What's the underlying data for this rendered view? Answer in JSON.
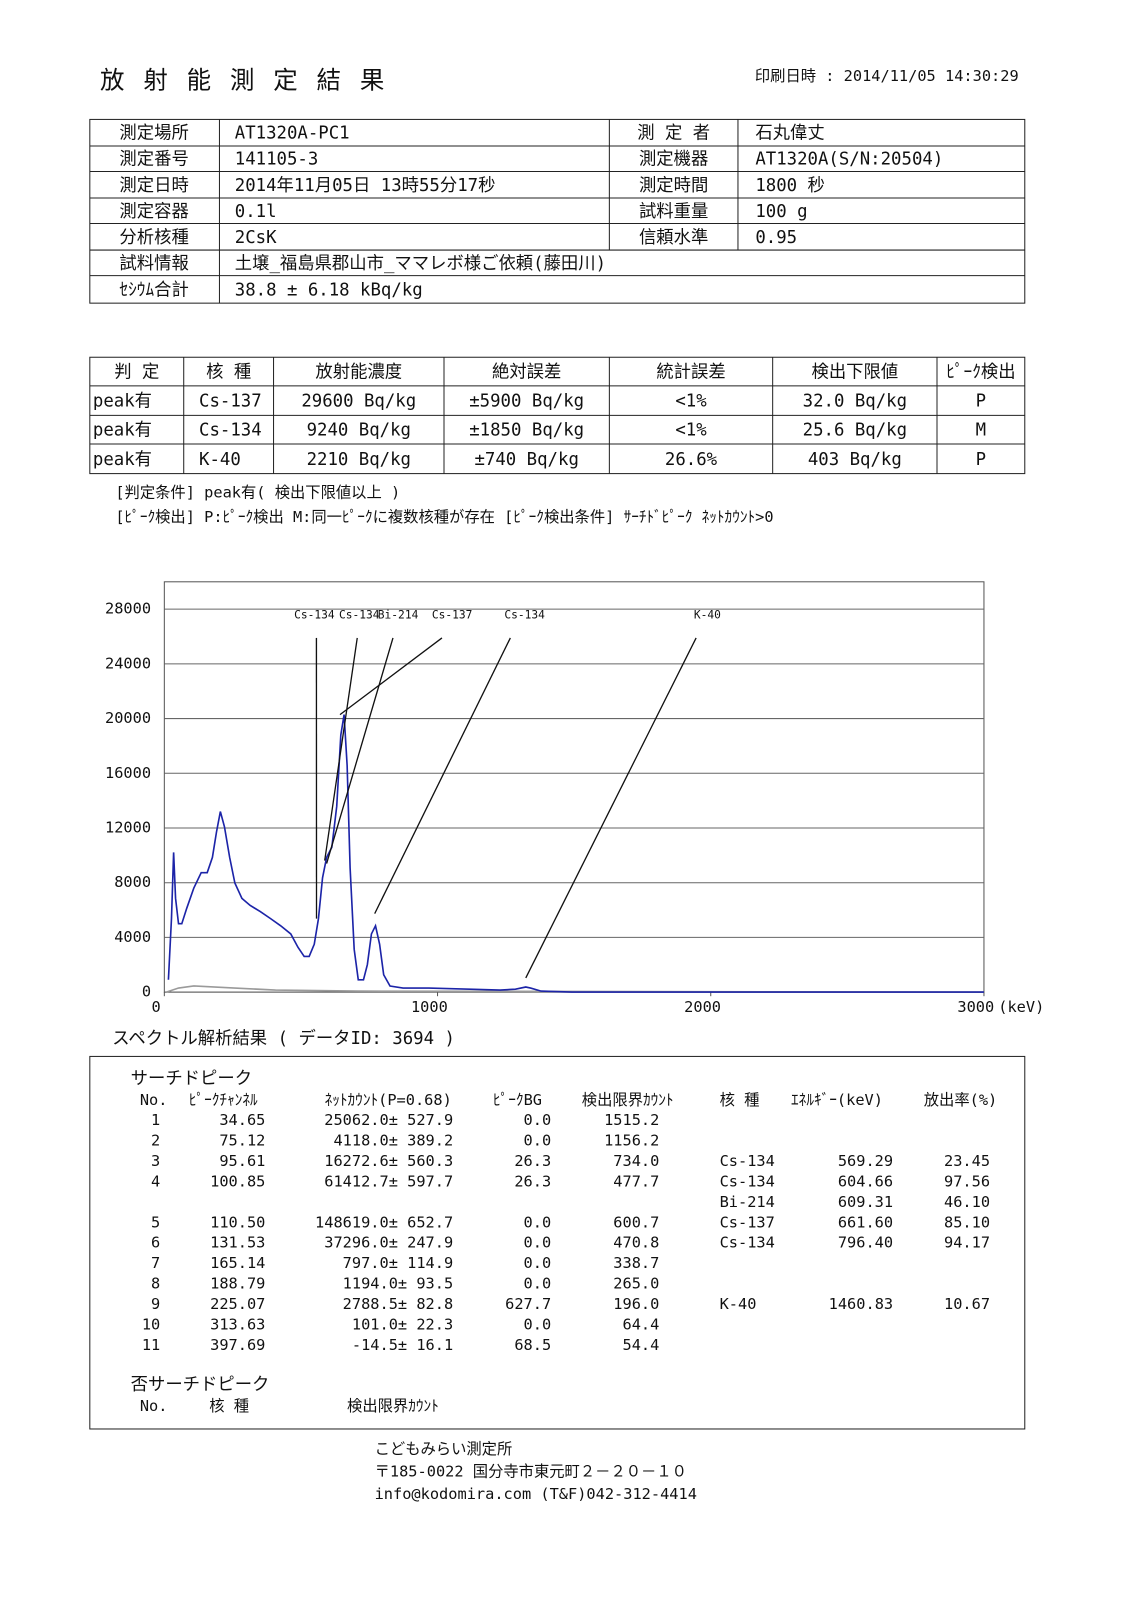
{
  "header": {
    "title": "放 射 能 測 定 結 果",
    "print_date": "印刷日時 : 2014/11/05 14:30:29"
  },
  "info": {
    "rows": [
      [
        "測定場所",
        "AT1320A-PC1",
        "測 定 者",
        "石丸偉丈"
      ],
      [
        "測定番号",
        "141105-3",
        "測定機器",
        "AT1320A(S/N:20504)"
      ],
      [
        "測定日時",
        "2014年11月05日 13時55分17秒",
        "測定時間",
        "1800 秒"
      ],
      [
        "測定容器",
        "0.1l",
        "試料重量",
        "100 g"
      ],
      [
        "分析核種",
        "2CsK",
        "信頼水準",
        "0.95"
      ],
      [
        "試料情報",
        "土壌_福島県郡山市_ママレボ様ご依頼(藤田川)"
      ],
      [
        "ｾｼｳﾑ合計",
        "38.8 ± 6.18 kBq/kg"
      ]
    ]
  },
  "results": {
    "header": [
      "判  定",
      "核  種",
      "放射能濃度",
      "絶対誤差",
      "統計誤差",
      "検出下限値",
      "ﾋﾟｰｸ検出"
    ],
    "rows": [
      [
        "peak有",
        "Cs-137",
        "29600  Bq/kg",
        "±5900  Bq/kg",
        "<1%",
        "32.0  Bq/kg",
        "P"
      ],
      [
        "peak有",
        "Cs-134",
        "9240  Bq/kg",
        "±1850  Bq/kg",
        "<1%",
        "25.6  Bq/kg",
        "M"
      ],
      [
        "peak有",
        "K-40",
        "2210  Bq/kg",
        "±740  Bq/kg",
        "26.6%",
        "403  Bq/kg",
        "P"
      ]
    ]
  },
  "notes": [
    "[判定条件] peak有( 検出下限値以上 )",
    "[ﾋﾟｰｸ検出] P:ﾋﾟｰｸ検出  M:同一ﾋﾟｰｸに複数核種が存在  [ﾋﾟｰｸ検出条件] ｻｰﾁﾄﾞﾋﾟｰｸ ﾈｯﾄｶｳﾝﾄ>0"
  ],
  "chart_data": {
    "type": "line",
    "x_unit": "(keV)",
    "xlim": [
      0,
      3000
    ],
    "xticks": [
      0,
      1000,
      2000,
      3000
    ],
    "ylim": [
      0,
      30000
    ],
    "yticks": [
      0,
      4000,
      8000,
      12000,
      16000,
      20000,
      24000,
      28000
    ],
    "grid": true,
    "series": [
      {
        "color": "#1c24a8",
        "x": [
          15,
          26,
          34,
          41,
          52,
          64,
          82,
          108,
          135,
          157,
          176,
          191,
          205,
          220,
          239,
          258,
          284,
          314,
          351,
          389,
          426,
          463,
          489,
          512,
          530,
          549,
          564,
          579,
          594,
          613,
          631,
          646,
          658,
          669,
          680,
          695,
          710,
          729,
          743,
          758,
          773,
          788,
          803,
          826,
          874,
          968,
          1117,
          1229,
          1285,
          1323,
          1341,
          1379,
          1491,
          3000
        ],
        "values": [
          900,
          5370,
          10220,
          6860,
          5000,
          5000,
          6120,
          7610,
          8730,
          8730,
          9850,
          11710,
          13200,
          12090,
          9850,
          7980,
          6860,
          6340,
          5890,
          5370,
          4850,
          4250,
          3280,
          2610,
          2610,
          3510,
          5370,
          8360,
          9850,
          10590,
          13580,
          18800,
          20290,
          16560,
          9100,
          3130,
          900,
          900,
          2010,
          4250,
          4850,
          3510,
          1270,
          450,
          300,
          300,
          220,
          150,
          220,
          370,
          300,
          75,
          0,
          0
        ]
      },
      {
        "color": "#9a9a9a",
        "x": [
          7,
          52,
          108,
          258,
          407,
          706,
          3000
        ],
        "values": [
          0,
          300,
          450,
          300,
          150,
          75,
          0
        ]
      }
    ],
    "annotations": [
      {
        "text": "Cs-134",
        "x": 557,
        "y": 5370
      },
      {
        "text": "Cs-134",
        "x": 587,
        "y": 9620
      },
      {
        "text": "Bi-214",
        "x": 594,
        "y": 9400
      },
      {
        "text": "Cs-137",
        "x": 643,
        "y": 20290
      },
      {
        "text": "Cs-134",
        "x": 770,
        "y": 5740
      },
      {
        "text": "K-40",
        "x": 1323,
        "y": 1040
      }
    ]
  },
  "spectrum_title": "スペクトル解析結果 ( データID: 3694 )",
  "peaks": {
    "title": "サーチドピーク",
    "header": [
      "No.",
      "ﾋﾟｰｸﾁｬﾝﾈﾙ",
      "ﾈｯﾄｶｳﾝﾄ(P=0.68)",
      "ﾋﾟｰｸBG",
      "検出限界ｶｳﾝﾄ",
      "核  種",
      "ｴﾈﾙｷﾞｰ(keV)",
      "放出率(%)"
    ],
    "rows": [
      {
        "no": "1",
        "channel": "34.65",
        "net": "25062.0± 527.9",
        "bg": "0.0",
        "limit": "1515.2",
        "nuclides": []
      },
      {
        "no": "2",
        "channel": "75.12",
        "net": "4118.0± 389.2",
        "bg": "0.0",
        "limit": "1156.2",
        "nuclides": []
      },
      {
        "no": "3",
        "channel": "95.61",
        "net": "16272.6± 560.3",
        "bg": "26.3",
        "limit": "734.0",
        "nuclides": [
          {
            "name": "Cs-134",
            "energy": "569.29",
            "rate": "23.45"
          }
        ]
      },
      {
        "no": "4",
        "channel": "100.85",
        "net": "61412.7± 597.7",
        "bg": "26.3",
        "limit": "477.7",
        "nuclides": [
          {
            "name": "Cs-134",
            "energy": "604.66",
            "rate": "97.56"
          },
          {
            "name": "Bi-214",
            "energy": "609.31",
            "rate": "46.10"
          }
        ]
      },
      {
        "no": "5",
        "channel": "110.50",
        "net": "148619.0± 652.7",
        "bg": "0.0",
        "limit": "600.7",
        "nuclides": [
          {
            "name": "Cs-137",
            "energy": "661.60",
            "rate": "85.10"
          }
        ]
      },
      {
        "no": "6",
        "channel": "131.53",
        "net": "37296.0± 247.9",
        "bg": "0.0",
        "limit": "470.8",
        "nuclides": [
          {
            "name": "Cs-134",
            "energy": "796.40",
            "rate": "94.17"
          }
        ]
      },
      {
        "no": "7",
        "channel": "165.14",
        "net": "797.0± 114.9",
        "bg": "0.0",
        "limit": "338.7",
        "nuclides": []
      },
      {
        "no": "8",
        "channel": "188.79",
        "net": "1194.0± 93.5",
        "bg": "0.0",
        "limit": "265.0",
        "nuclides": []
      },
      {
        "no": "9",
        "channel": "225.07",
        "net": "2788.5± 82.8",
        "bg": "627.7",
        "limit": "196.0",
        "nuclides": [
          {
            "name": "K-40",
            "energy": "1460.83",
            "rate": "10.67"
          }
        ]
      },
      {
        "no": "10",
        "channel": "313.63",
        "net": "101.0± 22.3",
        "bg": "0.0",
        "limit": "64.4",
        "nuclides": []
      },
      {
        "no": "11",
        "channel": "397.69",
        "net": "-14.5± 16.1",
        "bg": "68.5",
        "limit": "54.4",
        "nuclides": []
      }
    ]
  },
  "non_search": {
    "title": "否サーチドピーク",
    "header": [
      "No.",
      "核  種",
      "検出限界ｶｳﾝﾄ"
    ]
  },
  "footer": [
    "こどもみらい測定所",
    "〒185-0022  国分寺市東元町２－２０－１０",
    "info@kodomira.com (T&F)042-312-4414"
  ]
}
